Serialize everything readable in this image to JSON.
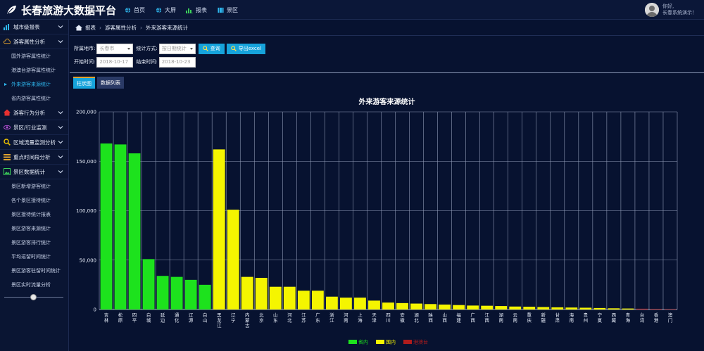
{
  "app": {
    "title": "长春旅游大数据平台"
  },
  "topnav": [
    {
      "label": "首页",
      "icon": "globe-icon"
    },
    {
      "label": "大屏",
      "icon": "globe-icon"
    },
    {
      "label": "报表",
      "icon": "bar-chart-icon"
    },
    {
      "label": "景区",
      "icon": "map-icon"
    }
  ],
  "user": {
    "greeting": "你好,",
    "name": "长春系统演示！"
  },
  "sidebar": {
    "groups": [
      {
        "label": "城市级报表",
        "icon": "bar-chart-icon",
        "color": "#2fb8ef"
      },
      {
        "label": "游客属性分析",
        "icon": "cloud-icon",
        "color": "#e0a22e"
      },
      {
        "label": "游客行为分析",
        "icon": "home-icon",
        "color": "#e83030"
      },
      {
        "label": "景区/行业监测",
        "icon": "eye-icon",
        "color": "#b64fd6"
      },
      {
        "label": "区域流量监测分析",
        "icon": "search-icon",
        "color": "#f0c400"
      },
      {
        "label": "重点时间段分析",
        "icon": "list-icon",
        "color": "#e0a22e"
      },
      {
        "label": "景区数据统计",
        "icon": "image-icon",
        "color": "#3ccf5a"
      }
    ],
    "tourist_items": [
      "国外游客属性统计",
      "港澳台游客属性统计",
      "外来游客来源统计",
      "省内游客属性统计"
    ],
    "scenic_items": [
      "景区新增游客统计",
      "各个景区接待统计",
      "景区接待统计报表",
      "景区游客来源统计",
      "景区游客排行统计",
      "平均逗留时间统计",
      "景区游客驻留时间统计",
      "景区实时流量分析"
    ]
  },
  "breadcrumb": [
    "报表",
    "游客属性分析",
    "外来游客来源统计"
  ],
  "filters": {
    "city_label": "所属地市:",
    "city_value": "长春市",
    "method_label": "统计方式:",
    "method_value": "按日期统计",
    "query_label": "查询",
    "export_label": "导出excel",
    "start_label": "开始时间:",
    "start_value": "2018-10-17",
    "end_label": "结束时间:",
    "end_value": "2018-10-23"
  },
  "tabs": [
    "柱状图",
    "数据列表"
  ],
  "colors": {
    "省内": "#1de21d",
    "国内": "#f5f500",
    "港澳台": "#b01c1c"
  },
  "chart_data": {
    "type": "bar",
    "title": "外来游客来源统计",
    "ylim": [
      0,
      200000
    ],
    "yticks": [
      "0",
      "50,000",
      "100,000",
      "150,000",
      "200,000"
    ],
    "grid": true,
    "legend_position": "bottom-center",
    "legend": [
      "省内",
      "国内",
      "港澳台"
    ],
    "categories": [
      "吉林",
      "松原",
      "四平",
      "白城",
      "延边",
      "通化",
      "辽源",
      "白山",
      "黑龙江",
      "辽宁",
      "内蒙古",
      "北京",
      "山东",
      "河北",
      "江苏",
      "广东",
      "浙江",
      "河南",
      "上海",
      "天津",
      "四川",
      "安徽",
      "湖北",
      "陕西",
      "山西",
      "福建",
      "广西",
      "江西",
      "湖南",
      "云南",
      "重庆",
      "新疆",
      "甘肃",
      "海南",
      "贵州",
      "宁夏",
      "西藏",
      "青海",
      "台湾",
      "香港",
      "澳门"
    ],
    "values": [
      168000,
      167000,
      158000,
      51000,
      34000,
      33000,
      30000,
      25000,
      162000,
      101000,
      33000,
      32000,
      23000,
      23000,
      19000,
      19000,
      13000,
      12000,
      12000,
      9000,
      7000,
      6500,
      6000,
      5500,
      5000,
      4500,
      4000,
      3800,
      3500,
      3000,
      2800,
      2500,
      2200,
      2000,
      1800,
      1500,
      1200,
      1000,
      800,
      600,
      500
    ],
    "groups": [
      "省内",
      "省内",
      "省内",
      "省内",
      "省内",
      "省内",
      "省内",
      "省内",
      "国内",
      "国内",
      "国内",
      "国内",
      "国内",
      "国内",
      "国内",
      "国内",
      "国内",
      "国内",
      "国内",
      "国内",
      "国内",
      "国内",
      "国内",
      "国内",
      "国内",
      "国内",
      "国内",
      "国内",
      "国内",
      "国内",
      "国内",
      "国内",
      "国内",
      "国内",
      "国内",
      "国内",
      "国内",
      "国内",
      "港澳台",
      "港澳台",
      "港澳台"
    ]
  }
}
